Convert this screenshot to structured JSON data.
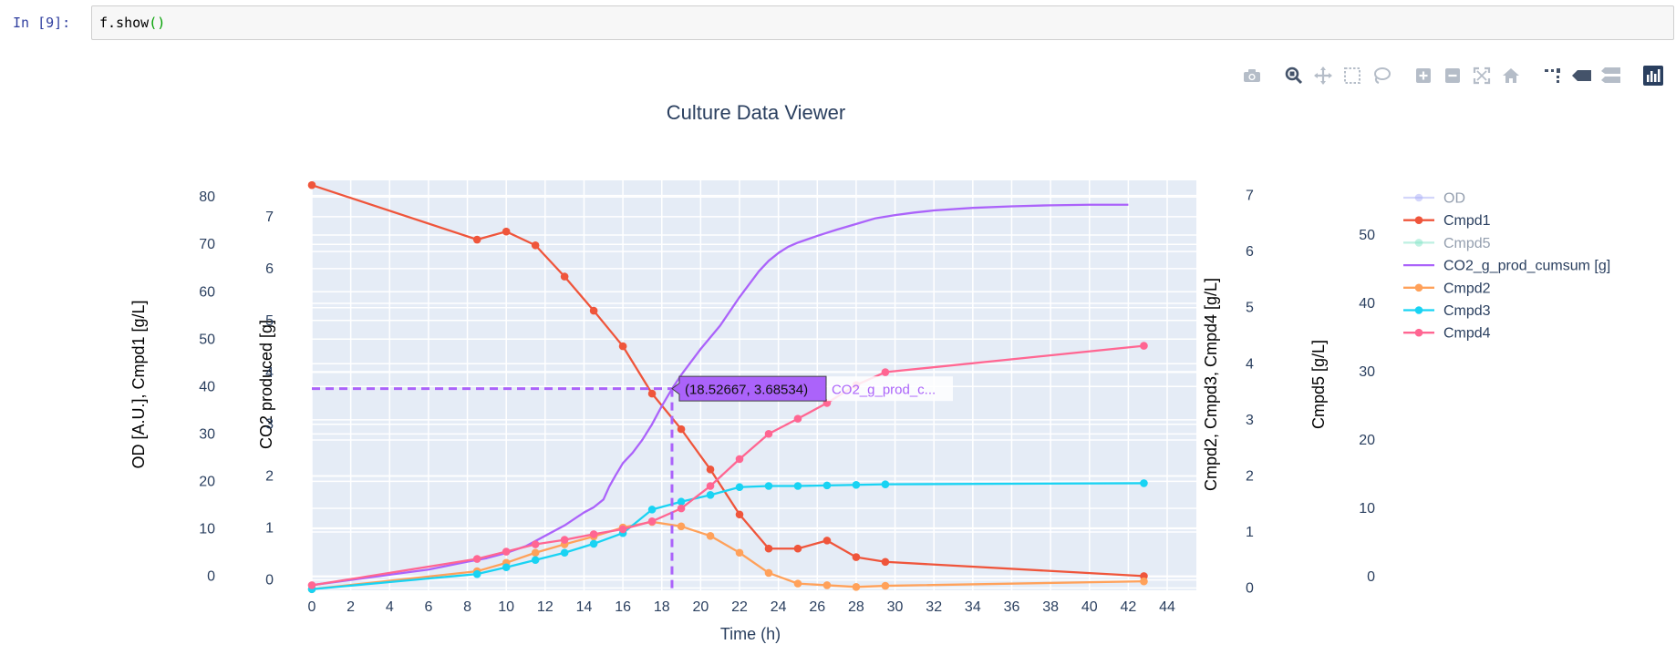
{
  "notebook": {
    "prompt": "In [9]:",
    "code_call": "f.show",
    "code_parens": "()"
  },
  "modebar": [
    "camera-icon",
    "zoom-icon",
    "pan-icon",
    "box-select-icon",
    "lasso-select-icon",
    "zoom-in-icon",
    "zoom-out-icon",
    "autoscale-icon",
    "reset-axes-icon",
    "spike-lines-icon",
    "hover-closest-icon",
    "hover-compare-icon",
    "plotly-logo-icon"
  ],
  "chart_data": {
    "type": "line",
    "title": "Culture Data Viewer",
    "xlabel": "Time (h)",
    "xlim": [
      0,
      45.5
    ],
    "xticks": [
      0,
      2,
      4,
      6,
      8,
      10,
      12,
      14,
      16,
      18,
      20,
      22,
      24,
      26,
      28,
      30,
      32,
      34,
      36,
      38,
      40,
      42,
      44
    ],
    "axes": [
      {
        "id": "y1",
        "label": "OD [A.U.], Cmpd1 [g/L]",
        "ylim": [
          -3,
          83.5
        ],
        "ticks": [
          0,
          10,
          20,
          30,
          40,
          50,
          60,
          70,
          80
        ]
      },
      {
        "id": "y2",
        "label": "CO2 produced [g]",
        "ylim": [
          -0.2,
          7.7
        ],
        "ticks": [
          0,
          1,
          2,
          3,
          4,
          5,
          6,
          7
        ]
      },
      {
        "id": "y3",
        "label": "Cmpd2, Cmpd3, Cmpd4 [g/L]",
        "ylim": [
          -0.04,
          7.27
        ],
        "ticks": [
          0,
          1,
          2,
          3,
          4,
          5,
          6,
          7
        ]
      },
      {
        "id": "y4",
        "label": "Cmpd5 [g/L]",
        "ylim": [
          -2,
          58
        ],
        "ticks": [
          0,
          10,
          20,
          30,
          40,
          50
        ]
      }
    ],
    "grid": true,
    "legend_position": "right",
    "series": [
      {
        "name": "OD",
        "axis": "y1",
        "color": "#a9aef7",
        "hidden": true,
        "markers": true,
        "x": [],
        "y": []
      },
      {
        "name": "Cmpd1",
        "axis": "y1",
        "color": "#ef553b",
        "markers": true,
        "x": [
          0,
          8.5,
          10,
          11.5,
          13,
          14.5,
          16,
          17.5,
          19,
          20.5,
          22,
          23.5,
          25,
          26.5,
          28,
          29.5,
          42.8
        ],
        "y": [
          82.5,
          71,
          72.7,
          69.8,
          63.2,
          56,
          48.5,
          38.5,
          31,
          22.5,
          13,
          5.8,
          5.8,
          7.5,
          4,
          3,
          0
        ]
      },
      {
        "name": "Cmpd5",
        "axis": "y4",
        "color": "#7fe3c6",
        "hidden": true,
        "markers": true,
        "x": [],
        "y": []
      },
      {
        "name": "CO2_g_prod_cumsum [g]",
        "axis": "y2",
        "color": "#ab63fa",
        "markers": false,
        "x": [
          0,
          2,
          4,
          6,
          8,
          9,
          10,
          11,
          12,
          13,
          14,
          14.5,
          15,
          15.3,
          15.6,
          16,
          16.5,
          17,
          17.5,
          18,
          18.53,
          19,
          19.5,
          20,
          21,
          22,
          23,
          23.5,
          24,
          24.5,
          25,
          26,
          27,
          28,
          29,
          30,
          31,
          32,
          34,
          36,
          38,
          40,
          42
        ],
        "y": [
          -0.1,
          0,
          0.1,
          0.2,
          0.35,
          0.42,
          0.52,
          0.65,
          0.85,
          1.05,
          1.3,
          1.4,
          1.55,
          1.8,
          2.0,
          2.25,
          2.45,
          2.7,
          3.0,
          3.35,
          3.68534,
          3.95,
          4.2,
          4.45,
          4.9,
          5.45,
          5.95,
          6.15,
          6.3,
          6.42,
          6.5,
          6.63,
          6.75,
          6.86,
          6.97,
          7.03,
          7.08,
          7.12,
          7.17,
          7.2,
          7.22,
          7.23,
          7.23
        ]
      },
      {
        "name": "Cmpd2",
        "axis": "y3",
        "color": "#ffa15a",
        "markers": true,
        "x": [
          0,
          8.5,
          10,
          11.5,
          13,
          14.5,
          16,
          17.5,
          19,
          20.5,
          22,
          23.5,
          25,
          26.5,
          28,
          29.5,
          42.8
        ],
        "y": [
          -0.02,
          0.3,
          0.45,
          0.63,
          0.78,
          0.92,
          1.08,
          1.18,
          1.1,
          0.93,
          0.63,
          0.27,
          0.08,
          0.05,
          0.02,
          0.04,
          0.12
        ]
      },
      {
        "name": "Cmpd3",
        "axis": "y3",
        "color": "#19d3f3",
        "markers": true,
        "x": [
          0,
          8.5,
          10,
          11.5,
          13,
          14.5,
          16,
          17.5,
          19,
          20.5,
          22,
          23.5,
          25,
          26.5,
          28,
          29.5,
          42.8
        ],
        "y": [
          -0.02,
          0.25,
          0.37,
          0.5,
          0.63,
          0.79,
          0.98,
          1.4,
          1.54,
          1.66,
          1.8,
          1.82,
          1.82,
          1.83,
          1.84,
          1.85,
          1.87
        ]
      },
      {
        "name": "Cmpd4",
        "axis": "y3",
        "color": "#ff6692",
        "markers": true,
        "x": [
          0,
          8.5,
          10,
          11.5,
          13,
          14.5,
          16,
          17.5,
          19,
          20.5,
          22,
          23.5,
          25,
          26.5,
          28,
          29.5,
          42.8
        ],
        "y": [
          0.05,
          0.52,
          0.65,
          0.78,
          0.86,
          0.96,
          1.05,
          1.19,
          1.42,
          1.82,
          2.3,
          2.75,
          3.02,
          3.3,
          3.62,
          3.85,
          4.32
        ]
      }
    ],
    "hover": {
      "series": "CO2_g_prod_cumsum [g]",
      "x": 18.52667,
      "y": 3.68534,
      "label": "(18.52667, 3.68534)",
      "name_truncated": "CO2_g_prod_c..."
    }
  }
}
